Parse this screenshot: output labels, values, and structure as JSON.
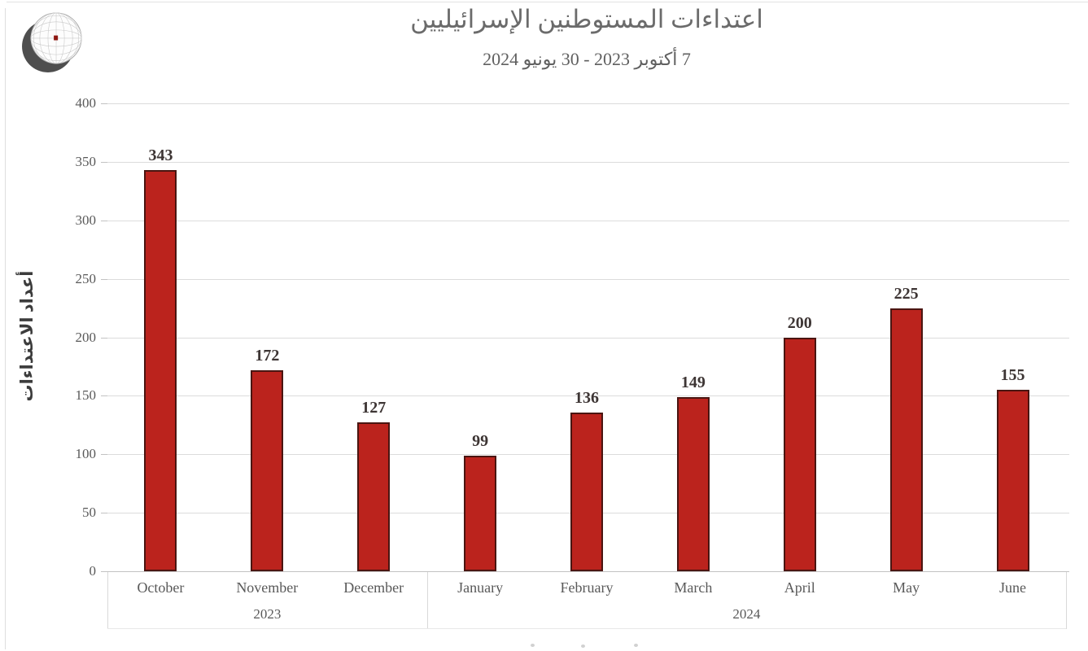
{
  "page": {
    "background": "#ffffff"
  },
  "logo": {
    "name": "oic-crescent-globe-logo",
    "crescent_color": "#4e4e4e",
    "globe_fill": "#fdfdfd",
    "globe_stroke": "#9a9a9a",
    "grid_color": "#c9c9c9",
    "center_mark_color": "#8e1812"
  },
  "header": {
    "title": "اعتداءات المستوطنين الإسرائيليين",
    "subtitle": "7 أكتوبر 2023 - 30 يونيو 2024"
  },
  "chart_data": {
    "type": "bar",
    "title": "اعتداءات المستوطنين الإسرائيليين",
    "subtitle": "7 أكتوبر 2023 - 30 يونيو 2024",
    "ylabel": "أعداد الاعتداءات",
    "xlabel": "",
    "categories": [
      "October",
      "November",
      "December",
      "January",
      "February",
      "March",
      "April",
      "May",
      "June"
    ],
    "values": [
      343,
      172,
      127,
      99,
      136,
      149,
      200,
      225,
      155
    ],
    "groups": [
      {
        "label": "2023",
        "start": 0,
        "span": 3
      },
      {
        "label": "2024",
        "start": 3,
        "span": 6
      }
    ],
    "ylim": [
      0,
      400
    ],
    "yticks": [
      0,
      50,
      100,
      150,
      200,
      250,
      300,
      350,
      400
    ],
    "grid": true,
    "legend": "none",
    "colors": {
      "bar_fill": "#bb231d",
      "bar_border": "#4a1511",
      "gridline": "#dcdcdc",
      "axis_line": "#c2c2c2",
      "tick_label": "#595959",
      "value_label": "#3d3534",
      "axis_band_border": "#d9d9d9"
    }
  }
}
